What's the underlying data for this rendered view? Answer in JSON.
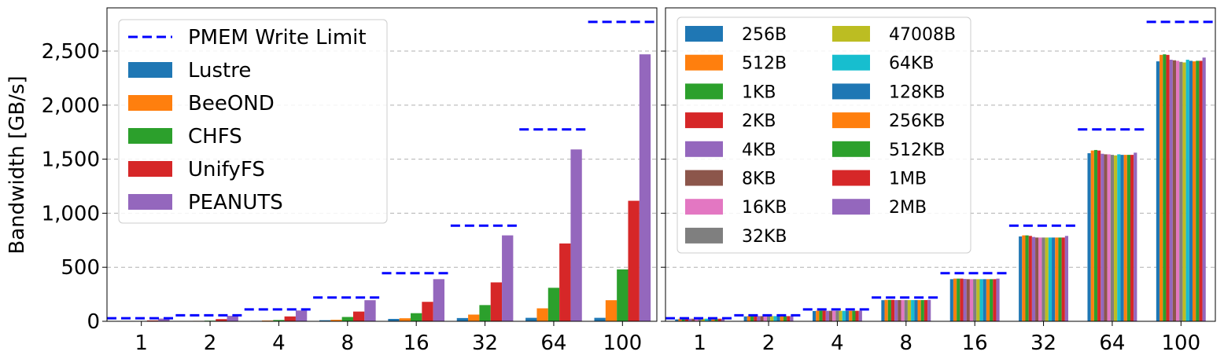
{
  "chart_data": [
    {
      "type": "bar",
      "panel": "left",
      "title": "",
      "xlabel": "",
      "ylabel": "Bandwidth [GB/s]",
      "ylim": [
        0,
        2900
      ],
      "yticks": [
        0,
        500,
        1000,
        1500,
        2000,
        2500
      ],
      "ytick_labels": [
        "0",
        "500",
        "1,000",
        "1,500",
        "2,000",
        "2,500"
      ],
      "categories": [
        "1",
        "2",
        "4",
        "8",
        "16",
        "32",
        "64",
        "100"
      ],
      "grid": "horizontal dashed",
      "legend_position": "top-left",
      "limit_line": {
        "name": "PMEM Write Limit",
        "color": "#0000ff",
        "values": [
          28,
          55,
          110,
          220,
          445,
          885,
          1775,
          2770
        ]
      },
      "series": [
        {
          "name": "Lustre",
          "color": "#1f77b4",
          "values": [
            1,
            2,
            4,
            10,
            22,
            30,
            32,
            32
          ]
        },
        {
          "name": "BeeOND",
          "color": "#ff7f0e",
          "values": [
            2,
            4,
            7,
            14,
            28,
            62,
            120,
            195
          ]
        },
        {
          "name": "CHFS",
          "color": "#2ca02c",
          "values": [
            3,
            6,
            12,
            40,
            75,
            150,
            310,
            480
          ]
        },
        {
          "name": "UnifyFS",
          "color": "#d62728",
          "values": [
            8,
            20,
            45,
            90,
            180,
            360,
            720,
            1115
          ]
        },
        {
          "name": "PEANUTS",
          "color": "#9467bd",
          "values": [
            25,
            50,
            100,
            195,
            390,
            795,
            1590,
            2470
          ]
        }
      ]
    },
    {
      "type": "bar",
      "panel": "right",
      "title": "",
      "xlabel": "",
      "ylabel": "",
      "ylim": [
        0,
        2900
      ],
      "yticks": [
        0,
        500,
        1000,
        1500,
        2000,
        2500
      ],
      "categories": [
        "1",
        "2",
        "4",
        "8",
        "16",
        "32",
        "64",
        "100"
      ],
      "grid": "horizontal dashed",
      "legend_position": "top-left, two columns",
      "limit_line": {
        "name": "PMEM Write Limit",
        "color": "#0000ff",
        "values": [
          28,
          55,
          110,
          220,
          445,
          885,
          1775,
          2770
        ]
      },
      "series": [
        {
          "name": "256B",
          "color": "#1f77b4",
          "values": [
            18,
            45,
            95,
            195,
            390,
            785,
            1555,
            2405
          ]
        },
        {
          "name": "512B",
          "color": "#ff7f0e",
          "values": [
            24,
            48,
            98,
            198,
            395,
            795,
            1580,
            2465
          ]
        },
        {
          "name": "1KB",
          "color": "#2ca02c",
          "values": [
            24,
            48,
            98,
            198,
            395,
            795,
            1585,
            2470
          ]
        },
        {
          "name": "2KB",
          "color": "#d62728",
          "values": [
            24,
            48,
            98,
            198,
            395,
            790,
            1580,
            2465
          ]
        },
        {
          "name": "4KB",
          "color": "#9467bd",
          "values": [
            24,
            48,
            97,
            196,
            392,
            780,
            1550,
            2420
          ]
        },
        {
          "name": "8KB",
          "color": "#8c564b",
          "values": [
            24,
            48,
            97,
            196,
            390,
            775,
            1545,
            2415
          ]
        },
        {
          "name": "16KB",
          "color": "#e377c2",
          "values": [
            24,
            48,
            97,
            196,
            390,
            775,
            1545,
            2410
          ]
        },
        {
          "name": "32KB",
          "color": "#7f7f7f",
          "values": [
            24,
            48,
            97,
            196,
            390,
            775,
            1540,
            2400
          ]
        },
        {
          "name": "47008B",
          "color": "#bcbd22",
          "values": [
            24,
            48,
            97,
            196,
            390,
            775,
            1535,
            2395
          ]
        },
        {
          "name": "64KB",
          "color": "#17becf",
          "values": [
            24,
            48,
            97,
            196,
            390,
            775,
            1545,
            2420
          ]
        },
        {
          "name": "128KB",
          "color": "#1f77b4",
          "values": [
            24,
            48,
            97,
            196,
            390,
            775,
            1540,
            2410
          ]
        },
        {
          "name": "256KB",
          "color": "#ff7f0e",
          "values": [
            24,
            48,
            97,
            196,
            390,
            775,
            1540,
            2405
          ]
        },
        {
          "name": "512KB",
          "color": "#2ca02c",
          "values": [
            24,
            48,
            97,
            196,
            390,
            775,
            1540,
            2410
          ]
        },
        {
          "name": "1MB",
          "color": "#d62728",
          "values": [
            24,
            48,
            97,
            196,
            390,
            775,
            1540,
            2410
          ]
        },
        {
          "name": "2MB",
          "color": "#9467bd",
          "values": [
            24,
            48,
            98,
            198,
            395,
            790,
            1560,
            2440
          ]
        }
      ]
    }
  ]
}
